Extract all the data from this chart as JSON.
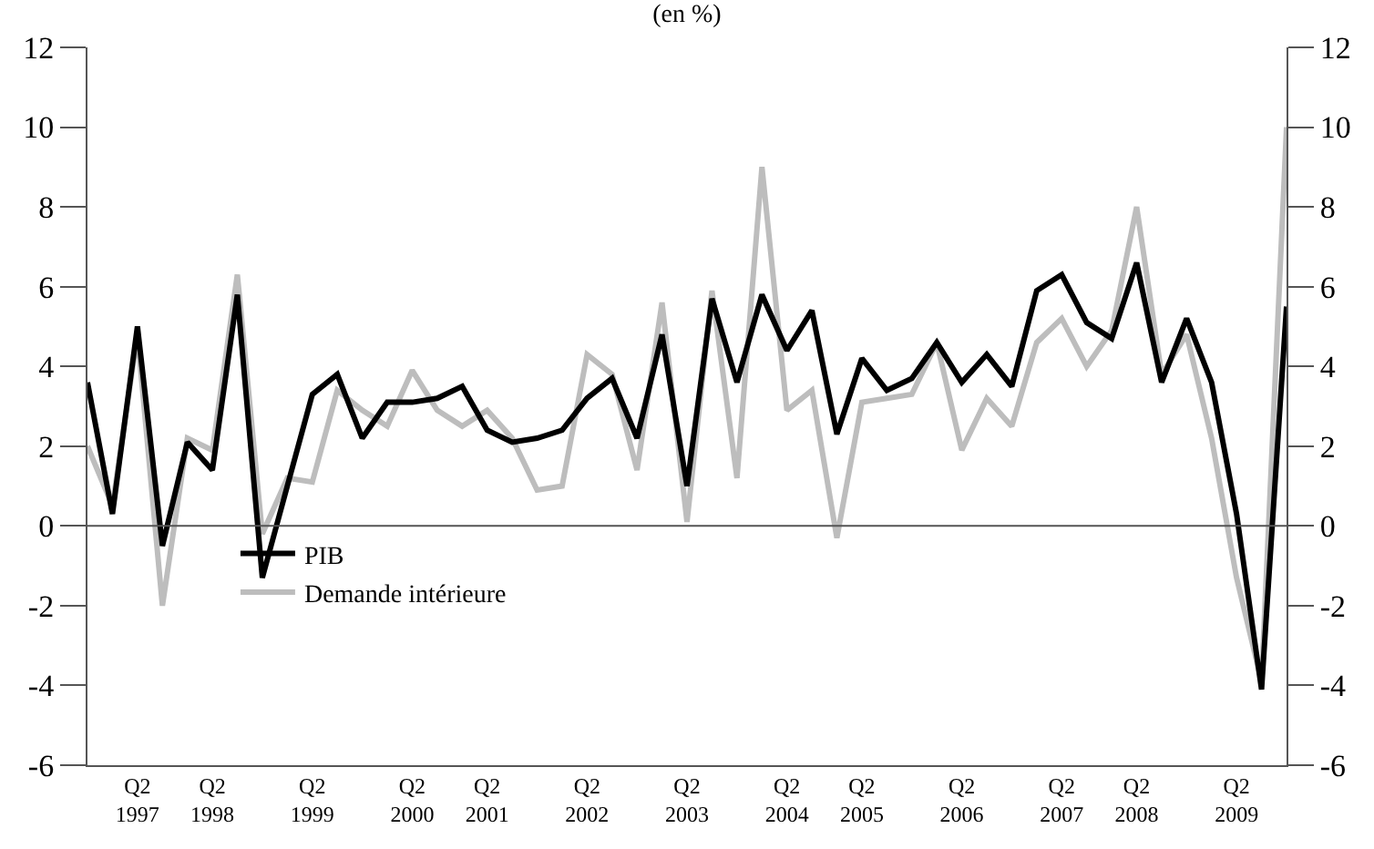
{
  "chart_data": {
    "type": "line",
    "title": "(en %)",
    "categories": [
      null,
      null,
      "Q2\n1997",
      null,
      null,
      "Q2\n1998",
      null,
      null,
      null,
      "Q2\n1999",
      null,
      null,
      null,
      "Q2\n2000",
      null,
      null,
      "Q2\n2001",
      null,
      null,
      null,
      "Q2\n2002",
      null,
      null,
      null,
      "Q2\n2003",
      null,
      null,
      null,
      "Q2\n2004",
      null,
      null,
      "Q2\n2005",
      null,
      null,
      null,
      "Q2\n2006",
      null,
      null,
      null,
      "Q2\n2007",
      null,
      null,
      "Q2\n2008",
      null,
      null,
      null,
      "Q2\n2009",
      null,
      null
    ],
    "series": [
      {
        "name": "PIB",
        "color": "#000000",
        "values": [
          3.6,
          0.3,
          5.0,
          -0.5,
          2.1,
          1.4,
          5.8,
          -1.3,
          1.0,
          3.3,
          3.8,
          2.2,
          3.1,
          3.1,
          3.2,
          3.5,
          2.4,
          2.1,
          2.2,
          2.4,
          3.2,
          3.7,
          2.2,
          4.8,
          1.0,
          5.7,
          3.6,
          5.8,
          4.4,
          5.4,
          2.3,
          4.2,
          3.4,
          3.7,
          4.6,
          3.6,
          4.3,
          3.5,
          5.9,
          6.3,
          5.1,
          4.7,
          6.6,
          3.6,
          5.2,
          3.6,
          0.3,
          -4.1,
          5.5
        ]
      },
      {
        "name": "Demande intérieure",
        "color": "#bdbdbd",
        "values": [
          2.0,
          0.5,
          4.8,
          -2.0,
          2.2,
          1.9,
          6.3,
          -0.2,
          1.2,
          1.1,
          3.4,
          2.9,
          2.5,
          3.9,
          2.9,
          2.5,
          2.9,
          2.2,
          0.9,
          1.0,
          4.3,
          3.8,
          1.4,
          5.6,
          0.1,
          5.9,
          1.2,
          9.0,
          2.9,
          3.4,
          -0.3,
          3.1,
          3.2,
          3.3,
          4.6,
          1.9,
          3.2,
          2.5,
          4.6,
          5.2,
          4.0,
          4.9,
          8.0,
          3.8,
          4.8,
          2.2,
          -1.3,
          -3.9,
          10.0
        ]
      }
    ],
    "ylim": [
      -6,
      12
    ],
    "yticks": [
      -6,
      -4,
      -2,
      0,
      2,
      4,
      6,
      8,
      10,
      12
    ],
    "y2lim": [
      -6,
      12
    ],
    "y2ticks": [
      -6,
      -4,
      -2,
      0,
      2,
      4,
      6,
      8,
      10,
      12
    ],
    "ref_lines": [
      {
        "axis": "y",
        "value": 0,
        "color": "#555555"
      }
    ],
    "grid": false,
    "legend": "bottom left",
    "line_style": "solid",
    "marker": "none"
  }
}
